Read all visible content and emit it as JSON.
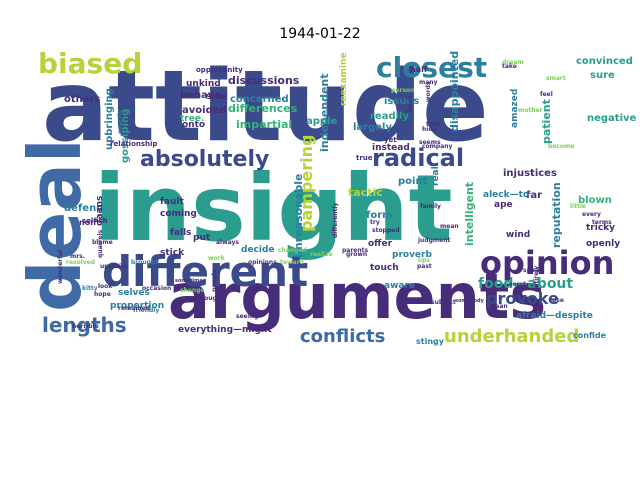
{
  "title": "1944-01-22",
  "colors": {
    "navy": "#3b4a8a",
    "teal": "#2a9d8f",
    "green": "#34b37a",
    "lime": "#b5d33a",
    "purple": "#472c7a",
    "blue": "#3f6aa6",
    "light_green": "#7ccf5c",
    "cyan": "#2c7f9e"
  },
  "words": [
    {
      "text": "attitude",
      "color": "#3b4a8a"
    },
    {
      "text": "insight",
      "color": "#2a9d8f"
    },
    {
      "text": "deal",
      "color": "#3f6aa6"
    },
    {
      "text": "arguments",
      "color": "#472c7a"
    },
    {
      "text": "different",
      "color": "#3b4a8a"
    },
    {
      "text": "opinion",
      "color": "#472c7a"
    },
    {
      "text": "biased",
      "color": "#b5d33a"
    },
    {
      "text": "closest",
      "color": "#2c7f9e"
    },
    {
      "text": "absolutely",
      "color": "#3b4a8a"
    },
    {
      "text": "radical",
      "color": "#3b4a8a"
    },
    {
      "text": "lengths",
      "color": "#3f6aa6"
    },
    {
      "text": "provoke",
      "color": "#3b4a8a"
    },
    {
      "text": "underhanded",
      "color": "#b5d33a"
    },
    {
      "text": "conflicts",
      "color": "#3f6aa6"
    },
    {
      "text": "pampering",
      "color": "#b5d33a"
    },
    {
      "text": "food—about",
      "color": "#2a9d8f"
    },
    {
      "text": "reputation",
      "color": "#2c7f9e"
    },
    {
      "text": "intelligent",
      "color": "#34b37a"
    },
    {
      "text": "disappointed",
      "color": "#2c7f9e"
    },
    {
      "text": "independent",
      "color": "#2c7f9e"
    },
    {
      "text": "unreasonable",
      "color": "#2c7f9e"
    },
    {
      "text": "discussions",
      "color": "#472c7a"
    },
    {
      "text": "differences",
      "color": "#34b37a"
    },
    {
      "text": "concerned",
      "color": "#2c7f9e"
    },
    {
      "text": "impartial",
      "color": "#34b37a"
    },
    {
      "text": "avoided",
      "color": "#472c7a"
    },
    {
      "text": "gossiping",
      "color": "#2a9d8f"
    },
    {
      "text": "upbringing",
      "color": "#2c7f9e"
    },
    {
      "text": "others",
      "color": "#472c7a"
    },
    {
      "text": "defend",
      "color": "#2c7f9e"
    },
    {
      "text": "behave",
      "color": "#472c7a"
    },
    {
      "text": "unkind",
      "color": "#472c7a"
    },
    {
      "text": "side",
      "color": "#472c7a"
    },
    {
      "text": "onto",
      "color": "#472c7a"
    },
    {
      "text": "tree.",
      "color": "#34b37a"
    },
    {
      "text": "apple",
      "color": "#2a9d8f"
    },
    {
      "text": "largely",
      "color": "#2c7f9e"
    },
    {
      "text": "readily",
      "color": "#2a9d8f"
    },
    {
      "text": "issues",
      "color": "#2c7f9e"
    },
    {
      "text": "amazed",
      "color": "#2c7f9e"
    },
    {
      "text": "patient",
      "color": "#2a9d8f"
    },
    {
      "text": "convinced",
      "color": "#2a9d8f"
    },
    {
      "text": "sure",
      "color": "#2a9d8f"
    },
    {
      "text": "negative",
      "color": "#2a9d8f"
    },
    {
      "text": "injustices",
      "color": "#472c7a"
    },
    {
      "text": "far",
      "color": "#472c7a"
    },
    {
      "text": "blown",
      "color": "#34b37a"
    },
    {
      "text": "tactic",
      "color": "#b5d33a"
    },
    {
      "text": "point",
      "color": "#2c7f9e"
    },
    {
      "text": "form",
      "color": "#2c7f9e"
    },
    {
      "text": "offer",
      "color": "#472c7a"
    },
    {
      "text": "proverb",
      "color": "#2c7f9e"
    },
    {
      "text": "ape",
      "color": "#472c7a"
    },
    {
      "text": "aleck—to",
      "color": "#2c7f9e"
    },
    {
      "text": "wind",
      "color": "#472c7a"
    },
    {
      "text": "tricky",
      "color": "#472c7a"
    },
    {
      "text": "openly",
      "color": "#472c7a"
    },
    {
      "text": "coming",
      "color": "#472c7a"
    },
    {
      "text": "fault",
      "color": "#472c7a"
    },
    {
      "text": "falls",
      "color": "#472c7a"
    },
    {
      "text": "stick",
      "color": "#472c7a"
    },
    {
      "text": "put",
      "color": "#472c7a"
    },
    {
      "text": "decide",
      "color": "#2c7f9e"
    },
    {
      "text": "selves",
      "color": "#2c7f9e"
    },
    {
      "text": "proportion",
      "color": "#2c7f9e"
    },
    {
      "text": "everything—might",
      "color": "#472c7a"
    },
    {
      "text": "touch",
      "color": "#472c7a"
    },
    {
      "text": "aware",
      "color": "#2c7f9e"
    },
    {
      "text": "afraid—despite",
      "color": "#2c7f9e"
    },
    {
      "text": "stingy",
      "color": "#2c7f9e"
    },
    {
      "text": "confide",
      "color": "#2c7f9e"
    },
    {
      "text": "daans",
      "color": "#472c7a"
    },
    {
      "text": "non",
      "color": "#472c7a"
    },
    {
      "text": "real",
      "color": "#2c7f9e"
    },
    {
      "text": "instead",
      "color": "#472c7a"
    },
    {
      "text": "reexamine",
      "color": "#b5d33a"
    },
    {
      "text": "half",
      "color": "#472c7a"
    },
    {
      "text": "opportunity",
      "color": "#472c7a"
    },
    {
      "text": "true",
      "color": "#472c7a"
    },
    {
      "text": "yet",
      "color": "#472c7a"
    },
    {
      "text": "many",
      "color": "#472c7a"
    },
    {
      "text": "seems",
      "color": "#472c7a"
    },
    {
      "text": "exactly",
      "color": "#2c7f9e"
    },
    {
      "text": "relationship",
      "color": "#472c7a"
    },
    {
      "text": "selfish",
      "color": "#472c7a"
    },
    {
      "text": "blame",
      "color": "#472c7a"
    },
    {
      "text": "quarrels",
      "color": "#472c7a"
    },
    {
      "text": "upstairs",
      "color": "#472c7a"
    },
    {
      "text": "brought",
      "color": "#2c7f9e"
    },
    {
      "text": "resolved",
      "color": "#7ccf5c"
    },
    {
      "text": "wonderful",
      "color": "#472c7a"
    },
    {
      "text": "mrs.",
      "color": "#472c7a"
    },
    {
      "text": "look",
      "color": "#472c7a"
    },
    {
      "text": "hope",
      "color": "#472c7a"
    },
    {
      "text": "kitty",
      "color": "#2c7f9e"
    },
    {
      "text": "friendly",
      "color": "#2c7f9e"
    },
    {
      "text": "horrible",
      "color": "#472c7a"
    },
    {
      "text": "remained",
      "color": "#472c7a"
    },
    {
      "text": "sometimes",
      "color": "#472c7a"
    },
    {
      "text": "occasion",
      "color": "#472c7a"
    },
    {
      "text": "change",
      "color": "#7ccf5c"
    },
    {
      "text": "seeing",
      "color": "#472c7a"
    },
    {
      "text": "though",
      "color": "#472c7a"
    },
    {
      "text": "people",
      "color": "#472c7a"
    },
    {
      "text": "opinions",
      "color": "#472c7a"
    },
    {
      "text": "always",
      "color": "#472c7a"
    },
    {
      "text": "work",
      "color": "#7ccf5c"
    },
    {
      "text": "changed",
      "color": "#7ccf5c"
    },
    {
      "text": "realize",
      "color": "#7ccf5c"
    },
    {
      "text": "toward",
      "color": "#7ccf5c"
    },
    {
      "text": "differently",
      "color": "#472c7a"
    },
    {
      "text": "parents",
      "color": "#472c7a"
    },
    {
      "text": "stopped",
      "color": "#472c7a"
    },
    {
      "text": "company",
      "color": "#472c7a"
    },
    {
      "text": "person",
      "color": "#7ccf5c"
    },
    {
      "text": "mean",
      "color": "#472c7a"
    },
    {
      "text": "judgment",
      "color": "#472c7a"
    },
    {
      "text": "past",
      "color": "#472c7a"
    },
    {
      "text": "subject",
      "color": "#472c7a"
    },
    {
      "text": "somebody",
      "color": "#472c7a"
    },
    {
      "text": "speak",
      "color": "#472c7a"
    },
    {
      "text": "worst",
      "color": "#472c7a"
    },
    {
      "text": "entirely",
      "color": "#472c7a"
    },
    {
      "text": "terms",
      "color": "#472c7a"
    },
    {
      "text": "every",
      "color": "#472c7a"
    },
    {
      "text": "little",
      "color": "#7ccf5c"
    },
    {
      "text": "family",
      "color": "#472c7a"
    },
    {
      "text": "lips",
      "color": "#7ccf5c"
    },
    {
      "text": "daan",
      "color": "#472c7a"
    },
    {
      "text": "hide",
      "color": "#472c7a"
    },
    {
      "text": "turn",
      "color": "#472c7a"
    },
    {
      "text": "words",
      "color": "#472c7a"
    },
    {
      "text": "trust",
      "color": "#472c7a"
    },
    {
      "text": "dream",
      "color": "#7ccf5c"
    },
    {
      "text": "take",
      "color": "#472c7a"
    },
    {
      "text": "smart",
      "color": "#7ccf5c"
    },
    {
      "text": "mother",
      "color": "#7ccf5c"
    },
    {
      "text": "become",
      "color": "#7ccf5c"
    },
    {
      "text": "use",
      "color": "#472c7a"
    },
    {
      "text": "grown",
      "color": "#472c7a"
    },
    {
      "text": "try",
      "color": "#472c7a"
    },
    {
      "text": "feel",
      "color": "#472c7a"
    }
  ]
}
